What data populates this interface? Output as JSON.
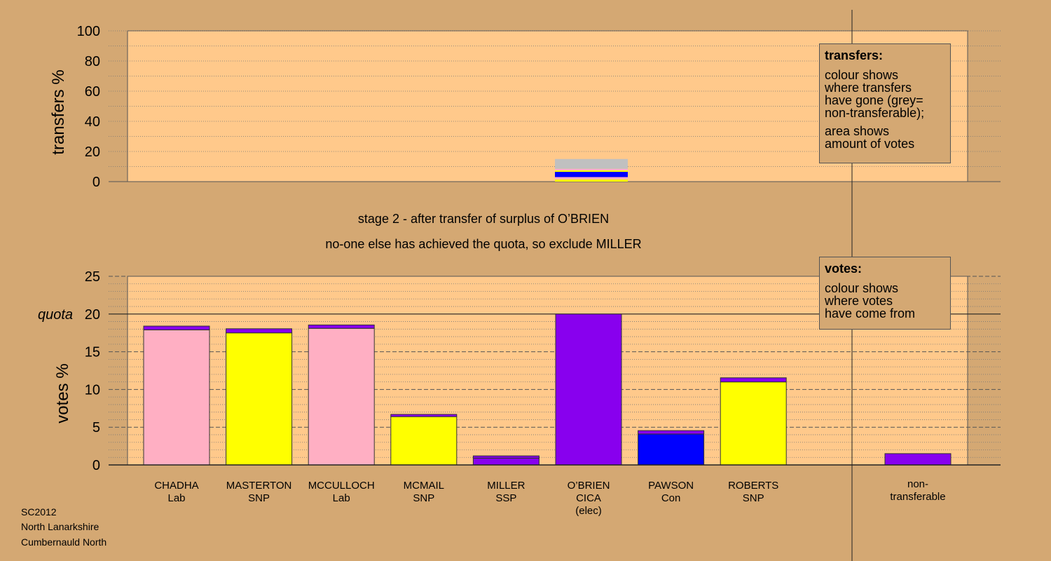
{
  "titles": {
    "line1": "stage 2 - after transfer of surplus of O’BRIEN",
    "line2": "no-one else has achieved the quota, so exclude MILLER"
  },
  "legend_transfers": {
    "heading": "transfers:",
    "text1": "colour shows\nwhere transfers\nhave gone (grey=\nnon-transferable);",
    "text2": "area shows\namount of votes"
  },
  "legend_votes": {
    "heading": "votes:",
    "text": "colour shows\nwhere votes\nhave come from"
  },
  "footer": {
    "line1": "SC2012",
    "line2": "North Lanarkshire",
    "line3": "Cumbernauld North"
  },
  "colors": {
    "background": "#d4a873",
    "plot_area": "#ffc98b",
    "Lab": "#ffafc3",
    "SNP": "#ffff00",
    "CICA": "#8800ee",
    "Con": "#0000ff",
    "SSP": "#8800ee",
    "non_transferable": "#c0c0c0"
  },
  "chart_data": [
    {
      "type": "bar",
      "name": "transfers",
      "ylabel": "transfers %",
      "ylim": [
        0,
        100
      ],
      "yticks": [
        0,
        20,
        40,
        60,
        80,
        100
      ],
      "source_candidate": "O’BRIEN",
      "stack_bottom_to_top": [
        {
          "to": "SNP",
          "value": 1.5
        },
        {
          "to": "Lab",
          "value": 1.5
        },
        {
          "to": "Con",
          "value": 3.5
        },
        {
          "to": "SNP",
          "value": 1.0
        },
        {
          "to": "Lab",
          "value": 1.0
        },
        {
          "to": "non-transferable",
          "value": 6.5
        }
      ]
    },
    {
      "type": "bar",
      "name": "votes",
      "ylabel": "votes %",
      "ylim": [
        0,
        25
      ],
      "yticks": [
        0,
        5,
        10,
        15,
        20,
        25
      ],
      "quota": 20,
      "quota_label": "quota",
      "candidates": [
        {
          "name": "CHADHA",
          "party": "Lab",
          "original": 17.9,
          "transferred": 0.5
        },
        {
          "name": "MASTERTON",
          "party": "SNP",
          "original": 17.5,
          "transferred": 0.55
        },
        {
          "name": "MCCULLOCH",
          "party": "Lab",
          "original": 18.1,
          "transferred": 0.45
        },
        {
          "name": "MCMAIL",
          "party": "SNP",
          "original": 6.4,
          "transferred": 0.3
        },
        {
          "name": "MILLER",
          "party": "SSP",
          "original": 0.9,
          "transferred": 0.3
        },
        {
          "name": "O’BRIEN",
          "party": "CICA",
          "note": "(elec)",
          "original": 20.0,
          "transferred": 0
        },
        {
          "name": "PAWSON",
          "party": "Con",
          "original": 4.1,
          "transferred": 0.45
        },
        {
          "name": "ROBERTS",
          "party": "SNP",
          "original": 11.0,
          "transferred": 0.55
        }
      ],
      "non_transferable": {
        "label": "non-\ntransferable",
        "value": 1.5
      }
    }
  ]
}
